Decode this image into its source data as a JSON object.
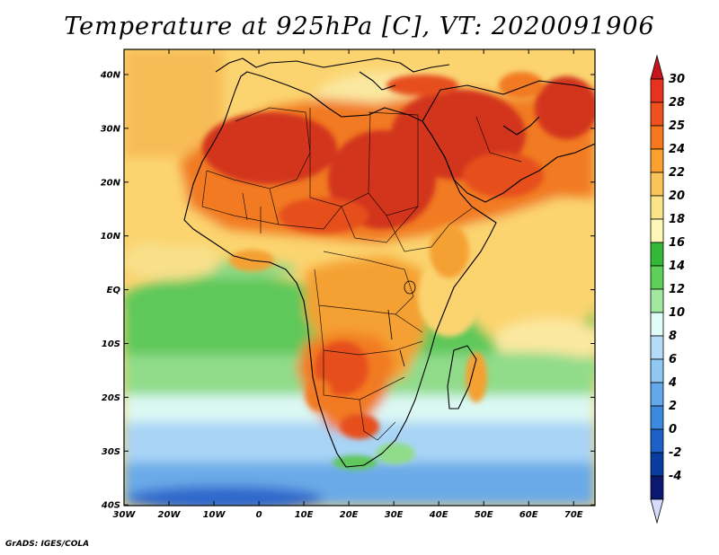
{
  "title": "Temperature at 925hPa [C], VT: 2020091906",
  "credit": "GrADS: IGES/COLA",
  "map": {
    "lon_ticks": [
      "30W",
      "20W",
      "10W",
      "0",
      "10E",
      "20E",
      "30E",
      "40E",
      "50E",
      "60E",
      "70E"
    ],
    "lat_ticks": [
      "40N",
      "30N",
      "20N",
      "10N",
      "EQ",
      "10S",
      "20S",
      "30S",
      "40S"
    ]
  },
  "colorbar": {
    "labels": [
      "30",
      "28",
      "25",
      "24",
      "22",
      "20",
      "18",
      "16",
      "14",
      "12",
      "10",
      "8",
      "6",
      "4",
      "2",
      "0",
      "-2",
      "-4"
    ],
    "over_color": "#c8141c",
    "under_color": "#d8dcfc",
    "colors": [
      "#e8321e",
      "#f0501e",
      "#f6781e",
      "#f9a030",
      "#fac45a",
      "#fbe488",
      "#fdf8b8",
      "#34b838",
      "#5cd058",
      "#a2e8a0",
      "#e0fcf8",
      "#b4dcf8",
      "#90c8f4",
      "#64a8ec",
      "#3c8ae0",
      "#1c60c8",
      "#083ca0",
      "#0c1870"
    ]
  },
  "colors": {
    "hot_dark": "#d2361c",
    "hot": "#e6501e",
    "warm": "#f5a032",
    "mild": "#fbd470",
    "green_light": "#90dc8a",
    "green": "#5ec85a",
    "green_dark": "#3ab03c",
    "cool": "#dcf8f4",
    "blue_light": "#a8d4f6",
    "blue": "#6aaae8",
    "blue_dark": "#2e68cc"
  }
}
